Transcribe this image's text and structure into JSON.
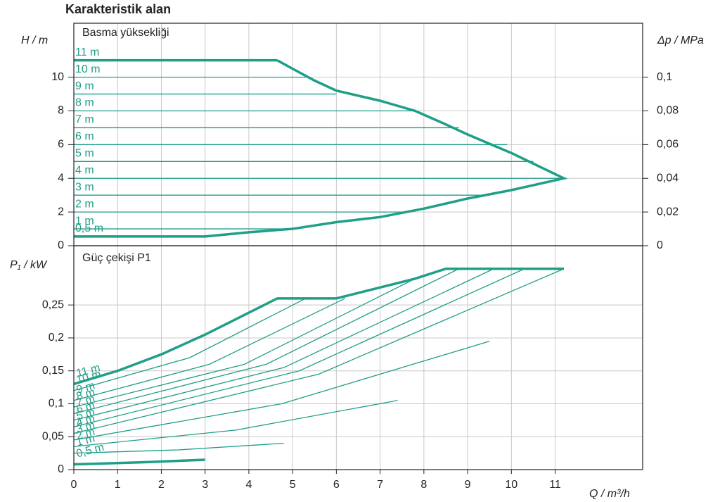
{
  "title": "Karakteristik alan",
  "chart_data": [
    {
      "type": "line",
      "title": "Basma yüksekliği",
      "ylabel": "H / m",
      "y2label": "Δp / MPa",
      "xlim": [
        0,
        13
      ],
      "ylim": [
        0,
        13.2
      ],
      "yticks": [
        0,
        2,
        4,
        6,
        8,
        10
      ],
      "y2lim": [
        0,
        0.132
      ],
      "y2ticks": [
        0,
        {
          "value": 0.02,
          "label": "0,02"
        },
        {
          "value": 0.04,
          "label": "0,04"
        },
        {
          "value": 0.06,
          "label": "0,06"
        },
        {
          "value": 0.08,
          "label": "0,08"
        },
        {
          "value": 0.1,
          "label": "0,1"
        }
      ],
      "grid": true,
      "color": "#1f9e88",
      "series": [
        {
          "x": [
            4.65,
            5,
            5.5,
            6,
            7,
            7.8,
            8.5,
            9,
            10,
            11.2,
            10,
            9,
            8,
            7,
            6,
            5,
            4,
            3,
            0
          ],
          "values": [
            11,
            10.5,
            9.8,
            9.2,
            8.6,
            8,
            7.2,
            6.6,
            5.5,
            4,
            3.3,
            2.8,
            2.2,
            1.7,
            1.4,
            1,
            0.8,
            0.55,
            0.55
          ],
          "thick": true
        },
        {
          "name": "11 m",
          "x": [
            0,
            4.65
          ],
          "values": [
            11,
            11
          ],
          "thick": true
        },
        {
          "name": "10 m",
          "x": [
            0,
            5.3
          ],
          "values": [
            10,
            10
          ]
        },
        {
          "name": "9 m",
          "x": [
            0,
            6.0
          ],
          "values": [
            9,
            9
          ]
        },
        {
          "name": "8 m",
          "x": [
            0,
            7.8
          ],
          "values": [
            8,
            8
          ]
        },
        {
          "name": "7 m",
          "x": [
            0,
            8.8
          ],
          "values": [
            7,
            7
          ]
        },
        {
          "name": "6 m",
          "x": [
            0,
            9.9
          ],
          "values": [
            6,
            6
          ]
        },
        {
          "name": "5 m",
          "x": [
            0,
            10.5
          ],
          "values": [
            5,
            5
          ]
        },
        {
          "name": "4 m",
          "x": [
            0,
            11.2
          ],
          "values": [
            4,
            4
          ]
        },
        {
          "name": "3 m",
          "x": [
            0,
            9.5
          ],
          "values": [
            3,
            3
          ]
        },
        {
          "name": "2 m",
          "x": [
            0,
            7.6
          ],
          "values": [
            2,
            2
          ]
        },
        {
          "name": "1 m",
          "x": [
            0,
            5.0
          ],
          "values": [
            1,
            1
          ]
        },
        {
          "name": "0,5 m",
          "x": [
            0,
            3.0
          ],
          "values": [
            0.55,
            0.55
          ]
        }
      ]
    },
    {
      "type": "line",
      "title": "Güç çekişi P1",
      "ylabel": "P₁ / kW",
      "xlabel": "Q / m³/h",
      "xlim": [
        0,
        13
      ],
      "xticks": [
        0,
        1,
        2,
        3,
        4,
        5,
        6,
        7,
        8,
        9,
        10,
        11
      ],
      "ylim": [
        0,
        0.34
      ],
      "yticks": [
        0,
        {
          "value": 0.05,
          "label": "0,05"
        },
        {
          "value": 0.1,
          "label": "0,1"
        },
        {
          "value": 0.15,
          "label": "0,15"
        },
        {
          "value": 0.2,
          "label": "0,2"
        },
        {
          "value": 0.25,
          "label": "0,25"
        }
      ],
      "grid": true,
      "color": "#1f9e88",
      "series": [
        {
          "name": "11 m",
          "x": [
            0,
            1,
            2,
            3,
            4.65,
            6,
            7.8,
            8.5,
            11.2
          ],
          "values": [
            0.13,
            0.15,
            0.175,
            0.205,
            0.26,
            0.26,
            0.29,
            0.305,
            0.305
          ],
          "thick": true
        },
        {
          "name": "10 m",
          "x": [
            0,
            2.65,
            5.3
          ],
          "values": [
            0.12,
            0.17,
            0.26
          ]
        },
        {
          "name": "9 m",
          "x": [
            0,
            3.1,
            6.2
          ],
          "values": [
            0.105,
            0.16,
            0.26
          ]
        },
        {
          "name": "8 m",
          "x": [
            0,
            3.9,
            7.8
          ],
          "values": [
            0.095,
            0.16,
            0.29
          ]
        },
        {
          "name": "7 m",
          "x": [
            0,
            4.4,
            8.8
          ],
          "values": [
            0.085,
            0.16,
            0.305
          ]
        },
        {
          "name": "6 m",
          "x": [
            0,
            4.8,
            9.6
          ],
          "values": [
            0.075,
            0.155,
            0.305
          ]
        },
        {
          "name": "5 m",
          "x": [
            0,
            5.15,
            10.3
          ],
          "values": [
            0.065,
            0.15,
            0.305
          ]
        },
        {
          "name": "4 m",
          "x": [
            0,
            5.6,
            11.2
          ],
          "values": [
            0.055,
            0.145,
            0.305
          ]
        },
        {
          "name": "3 m",
          "x": [
            0,
            4.75,
            9.5
          ],
          "values": [
            0.045,
            0.1,
            0.195
          ]
        },
        {
          "name": "2 m",
          "x": [
            0,
            3.7,
            7.4
          ],
          "values": [
            0.035,
            0.06,
            0.105
          ]
        },
        {
          "name": "1 m",
          "x": [
            0,
            2.4,
            4.8
          ],
          "values": [
            0.025,
            0.03,
            0.04
          ]
        },
        {
          "name": "0,5 m",
          "x": [
            0,
            1.5,
            3
          ],
          "values": [
            0.008,
            0.011,
            0.015
          ],
          "thick": true
        }
      ]
    }
  ]
}
